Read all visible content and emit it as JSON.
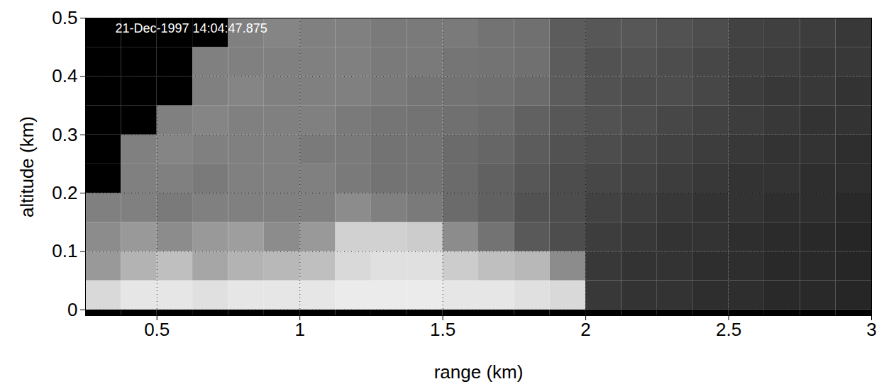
{
  "chart_data": {
    "type": "heatmap",
    "x_label": "range (km)",
    "y_label": "altitude (km)",
    "annotations": [
      "21-Dec-1997 14:04:47.875"
    ],
    "xlim": [
      0.25,
      3
    ],
    "xticks": [
      0.5,
      1,
      1.5,
      2,
      2.5,
      3
    ],
    "ylim": [
      -0.01,
      0.5
    ],
    "yticks": [
      0,
      0.1,
      0.2,
      0.3,
      0.4,
      0.5
    ],
    "grid": true,
    "x_edges": [
      0.25,
      0.375,
      0.5,
      0.625,
      0.75,
      0.875,
      1,
      1.125,
      1.25,
      1.375,
      1.5,
      1.625,
      1.75,
      1.875,
      2,
      2.125,
      2.25,
      2.375,
      2.5,
      2.625,
      2.75,
      2.875,
      3
    ],
    "y_edges": [
      -0.01,
      0,
      0.05,
      0.1,
      0.15,
      0.2,
      0.25,
      0.3,
      0.35,
      0.4,
      0.45,
      0.5
    ],
    "zlim": [
      0,
      1
    ],
    "cells": [
      [
        0,
        0,
        0,
        0,
        0,
        0,
        0,
        0,
        0,
        0,
        0,
        0,
        0,
        0,
        0,
        0,
        0,
        0,
        0,
        0,
        0,
        0
      ],
      [
        0.85,
        0.9,
        0.9,
        0.88,
        0.9,
        0.9,
        0.9,
        0.92,
        0.92,
        0.92,
        0.9,
        0.9,
        0.88,
        0.85,
        0.22,
        0.2,
        0.2,
        0.18,
        0.18,
        0.16,
        0.16,
        0.15
      ],
      [
        0.6,
        0.7,
        0.75,
        0.65,
        0.7,
        0.72,
        0.75,
        0.85,
        0.88,
        0.88,
        0.8,
        0.75,
        0.72,
        0.55,
        0.22,
        0.2,
        0.2,
        0.18,
        0.18,
        0.16,
        0.16,
        0.15
      ],
      [
        0.55,
        0.6,
        0.55,
        0.6,
        0.62,
        0.55,
        0.6,
        0.82,
        0.82,
        0.8,
        0.55,
        0.45,
        0.35,
        0.3,
        0.24,
        0.22,
        0.2,
        0.2,
        0.18,
        0.17,
        0.16,
        0.15
      ],
      [
        0.5,
        0.5,
        0.48,
        0.5,
        0.5,
        0.5,
        0.5,
        0.55,
        0.5,
        0.48,
        0.42,
        0.38,
        0.32,
        0.3,
        0.26,
        0.24,
        0.22,
        0.2,
        0.2,
        0.18,
        0.18,
        0.16
      ],
      [
        0,
        0.5,
        0.5,
        0.48,
        0.5,
        0.5,
        0.5,
        0.48,
        0.45,
        0.45,
        0.42,
        0.38,
        0.34,
        0.3,
        0.28,
        0.26,
        0.24,
        0.22,
        0.2,
        0.2,
        0.18,
        0.18
      ],
      [
        0,
        0.5,
        0.52,
        0.5,
        0.5,
        0.5,
        0.48,
        0.48,
        0.45,
        0.45,
        0.42,
        0.4,
        0.36,
        0.32,
        0.3,
        0.28,
        0.26,
        0.24,
        0.22,
        0.2,
        0.2,
        0.18
      ],
      [
        0,
        0,
        0.5,
        0.52,
        0.5,
        0.5,
        0.5,
        0.48,
        0.46,
        0.45,
        0.44,
        0.42,
        0.38,
        0.34,
        0.32,
        0.3,
        0.28,
        0.26,
        0.24,
        0.22,
        0.2,
        0.2
      ],
      [
        0,
        0,
        0,
        0.5,
        0.52,
        0.5,
        0.5,
        0.5,
        0.48,
        0.46,
        0.45,
        0.44,
        0.42,
        0.36,
        0.32,
        0.3,
        0.3,
        0.28,
        0.24,
        0.22,
        0.22,
        0.2
      ],
      [
        0,
        0,
        0,
        0.5,
        0.5,
        0.5,
        0.5,
        0.5,
        0.48,
        0.48,
        0.46,
        0.45,
        0.44,
        0.36,
        0.32,
        0.32,
        0.3,
        0.28,
        0.25,
        0.24,
        0.22,
        0.22
      ],
      [
        0,
        0,
        0,
        0,
        0.5,
        0.52,
        0.5,
        0.5,
        0.48,
        0.48,
        0.48,
        0.45,
        0.44,
        0.36,
        0.34,
        0.34,
        0.32,
        0.3,
        0.26,
        0.25,
        0.24,
        0.22
      ]
    ]
  }
}
